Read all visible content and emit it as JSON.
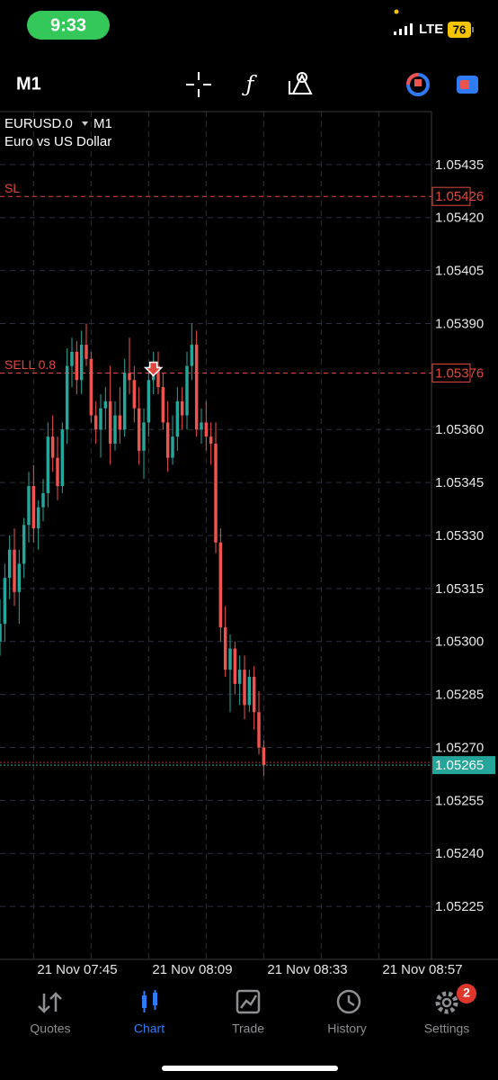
{
  "status_bar": {
    "time": "9:33",
    "network": "LTE",
    "battery": "76"
  },
  "toolbar": {
    "timeframe": "M1"
  },
  "chart_data": {
    "type": "candlestick",
    "symbol": "EURUSD.0",
    "timeframe": "M1",
    "description": "Euro vs US Dollar",
    "x": [
      458,
      459,
      460,
      461,
      462,
      463,
      464,
      465,
      466,
      467,
      468,
      469,
      470,
      471,
      472,
      473,
      474,
      475,
      476,
      477,
      478,
      479,
      480,
      481,
      482,
      483,
      484,
      485,
      486,
      487,
      488,
      489,
      490,
      491,
      492,
      493,
      494,
      495,
      496,
      497,
      498,
      499,
      500,
      501,
      502,
      503,
      504,
      505,
      506,
      507,
      508,
      509,
      510,
      511,
      512,
      513
    ],
    "open": [
      1.053,
      1.05305,
      1.05318,
      1.05326,
      1.05314,
      1.05322,
      1.05333,
      1.05344,
      1.05332,
      1.05338,
      1.05342,
      1.05358,
      1.05352,
      1.05344,
      1.0536,
      1.05378,
      1.05382,
      1.05374,
      1.05384,
      1.0538,
      1.05364,
      1.0536,
      1.05366,
      1.05368,
      1.05356,
      1.05364,
      1.0536,
      1.05376,
      1.05374,
      1.05366,
      1.05354,
      1.05362,
      1.05374,
      1.05378,
      1.05372,
      1.05362,
      1.05352,
      1.05358,
      1.05368,
      1.05364,
      1.05378,
      1.05384,
      1.0536,
      1.05362,
      1.05358,
      1.05356,
      1.05328,
      1.05304,
      1.05292,
      1.05298,
      1.05288,
      1.05292,
      1.05282,
      1.0529,
      1.0528,
      1.0527
    ],
    "high": [
      1.05312,
      1.05322,
      1.0533,
      1.05332,
      1.05326,
      1.05335,
      1.05348,
      1.0535,
      1.0534,
      1.05346,
      1.05362,
      1.05364,
      1.05358,
      1.05362,
      1.05383,
      1.05386,
      1.05385,
      1.05388,
      1.0539,
      1.05382,
      1.05368,
      1.0537,
      1.05372,
      1.05378,
      1.05368,
      1.05372,
      1.0538,
      1.05386,
      1.05378,
      1.05372,
      1.05366,
      1.05378,
      1.05382,
      1.05382,
      1.05376,
      1.05368,
      1.05364,
      1.05372,
      1.05372,
      1.05382,
      1.0539,
      1.05388,
      1.05366,
      1.05368,
      1.05362,
      1.05362,
      1.05332,
      1.0531,
      1.05302,
      1.053,
      1.05296,
      1.05296,
      1.05292,
      1.05293,
      1.05286,
      1.05272
    ],
    "low": [
      1.05296,
      1.053,
      1.05312,
      1.0531,
      1.05305,
      1.05318,
      1.05328,
      1.05328,
      1.05326,
      1.05334,
      1.05338,
      1.05348,
      1.0534,
      1.05342,
      1.05356,
      1.05372,
      1.0537,
      1.0537,
      1.05378,
      1.05362,
      1.05356,
      1.05352,
      1.0536,
      1.0535,
      1.05354,
      1.05356,
      1.05358,
      1.0537,
      1.05362,
      1.0535,
      1.05346,
      1.05358,
      1.0537,
      1.0537,
      1.0536,
      1.05348,
      1.0535,
      1.05354,
      1.0536,
      1.0536,
      1.05374,
      1.05358,
      1.05356,
      1.05354,
      1.0535,
      1.05325,
      1.053,
      1.0529,
      1.0528,
      1.05285,
      1.05282,
      1.05278,
      1.0528,
      1.05275,
      1.05268,
      1.05262
    ],
    "close": [
      1.05305,
      1.05318,
      1.05326,
      1.05314,
      1.05322,
      1.05333,
      1.05344,
      1.05332,
      1.05338,
      1.05342,
      1.05358,
      1.05352,
      1.05344,
      1.0536,
      1.05378,
      1.05382,
      1.05374,
      1.05384,
      1.0538,
      1.05364,
      1.0536,
      1.05366,
      1.05368,
      1.05356,
      1.05364,
      1.0536,
      1.05376,
      1.05374,
      1.05366,
      1.05354,
      1.05362,
      1.05374,
      1.05378,
      1.05372,
      1.05362,
      1.05352,
      1.05358,
      1.05368,
      1.05364,
      1.05378,
      1.05384,
      1.0536,
      1.05362,
      1.05358,
      1.05356,
      1.05328,
      1.05304,
      1.05292,
      1.05298,
      1.05288,
      1.05292,
      1.05282,
      1.0529,
      1.0528,
      1.0527,
      1.05265
    ],
    "up_color": "#26a69a",
    "down_color": "#ef5350",
    "xlim": [
      458,
      548
    ],
    "xticks": [
      {
        "value": 465,
        "label": "21 Nov 07:45"
      },
      {
        "value": 489,
        "label": "21 Nov 08:09"
      },
      {
        "value": 513,
        "label": "21 Nov 08:33"
      },
      {
        "value": 537,
        "label": "21 Nov 08:57"
      }
    ],
    "ylim": [
      1.0521,
      1.0545
    ],
    "yticks": [
      1.05435,
      {
        "value": 1.0542,
        "label": "1.05420"
      },
      1.05405,
      {
        "value": 1.0539,
        "label": "1.05390"
      },
      {
        "value": 1.0536,
        "label": "1.05360"
      },
      1.05345,
      {
        "value": 1.0533,
        "label": "1.05330"
      },
      1.05315,
      {
        "value": 1.053,
        "label": "1.05300"
      },
      1.05285,
      {
        "value": 1.0527,
        "label": "1.05270"
      },
      1.05255,
      {
        "value": 1.0524,
        "label": "1.05240"
      },
      1.05225
    ],
    "grid": true,
    "levels": [
      {
        "label": "SL",
        "value": 1.05426,
        "color": "#e0483e"
      },
      {
        "label": "SELL 0.8",
        "value": 1.05376,
        "color": "#e0483e"
      }
    ],
    "bid": {
      "value": 1.05265,
      "color": "#26a69a"
    },
    "markers": [
      {
        "x": 490,
        "y": 1.05376,
        "color": "#e0483e"
      }
    ]
  },
  "nav": {
    "items": [
      "Quotes",
      "Chart",
      "Trade",
      "History",
      "Settings"
    ],
    "active": 1,
    "badge": "2"
  }
}
